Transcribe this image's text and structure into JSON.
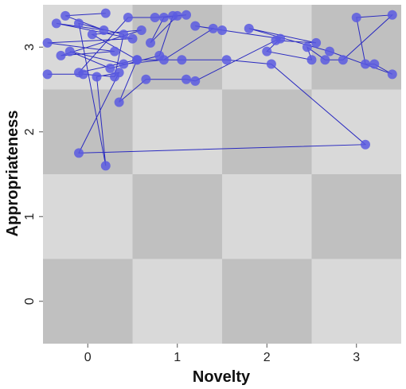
{
  "chart_data": {
    "type": "scatter",
    "title": "",
    "xlabel": "Novelty",
    "ylabel": "Appropriateness",
    "xlim": [
      -0.5,
      3.5
    ],
    "ylim": [
      -0.5,
      3.5
    ],
    "x_ticks": [
      "0",
      "1",
      "2",
      "3"
    ],
    "y_ticks": [
      "0",
      "1",
      "2",
      "3"
    ],
    "background": "checkerboard",
    "colors": {
      "cell_light": "#d9d9d9",
      "cell_dark": "#c0c0c0",
      "point": "#5a5ae0",
      "line": "#2a2ac0"
    },
    "connected": true,
    "points": [
      {
        "x": 0.2,
        "y": 3.4
      },
      {
        "x": -0.25,
        "y": 3.37
      },
      {
        "x": 0.18,
        "y": 3.2
      },
      {
        "x": -0.35,
        "y": 3.28
      },
      {
        "x": 0.5,
        "y": 3.1
      },
      {
        "x": -0.45,
        "y": 3.05
      },
      {
        "x": 0.3,
        "y": 2.95
      },
      {
        "x": -0.3,
        "y": 2.9
      },
      {
        "x": 0.6,
        "y": 3.2
      },
      {
        "x": 0.05,
        "y": 3.15
      },
      {
        "x": 0.55,
        "y": 2.85
      },
      {
        "x": -0.1,
        "y": 2.7
      },
      {
        "x": 0.45,
        "y": 3.35
      },
      {
        "x": 0.75,
        "y": 3.35
      },
      {
        "x": 1.1,
        "y": 3.38
      },
      {
        "x": 0.85,
        "y": 3.35
      },
      {
        "x": 0.7,
        "y": 3.05
      },
      {
        "x": 1.0,
        "y": 3.37
      },
      {
        "x": 0.95,
        "y": 3.37
      },
      {
        "x": 0.8,
        "y": 2.9
      },
      {
        "x": 0.25,
        "y": 2.75
      },
      {
        "x": -0.2,
        "y": 2.95
      },
      {
        "x": 0.4,
        "y": 2.8
      },
      {
        "x": 0.85,
        "y": 2.85
      },
      {
        "x": 1.4,
        "y": 3.22
      },
      {
        "x": 1.2,
        "y": 3.25
      },
      {
        "x": 1.5,
        "y": 3.2
      },
      {
        "x": 2.15,
        "y": 3.1
      },
      {
        "x": 2.0,
        "y": 2.95
      },
      {
        "x": 2.5,
        "y": 2.85
      },
      {
        "x": 2.45,
        "y": 3.0
      },
      {
        "x": 2.65,
        "y": 2.85
      },
      {
        "x": 2.85,
        "y": 2.85
      },
      {
        "x": 3.4,
        "y": 3.38
      },
      {
        "x": 3.0,
        "y": 3.35
      },
      {
        "x": 3.1,
        "y": 2.8
      },
      {
        "x": 3.2,
        "y": 2.8
      },
      {
        "x": 3.4,
        "y": 2.68
      },
      {
        "x": 2.7,
        "y": 2.95
      },
      {
        "x": 1.8,
        "y": 3.22
      },
      {
        "x": 2.55,
        "y": 3.05
      },
      {
        "x": 2.1,
        "y": 3.08
      },
      {
        "x": 1.2,
        "y": 2.6
      },
      {
        "x": 1.1,
        "y": 2.62
      },
      {
        "x": 0.65,
        "y": 2.62
      },
      {
        "x": 0.35,
        "y": 2.35
      },
      {
        "x": 0.55,
        "y": 2.85
      },
      {
        "x": 1.05,
        "y": 2.85
      },
      {
        "x": 1.55,
        "y": 2.85
      },
      {
        "x": 2.05,
        "y": 2.8
      },
      {
        "x": 3.1,
        "y": 1.85
      },
      {
        "x": -0.1,
        "y": 1.75
      },
      {
        "x": 0.35,
        "y": 2.7
      },
      {
        "x": 0.1,
        "y": 2.65
      },
      {
        "x": 0.2,
        "y": 1.6
      },
      {
        "x": -0.1,
        "y": 3.28
      },
      {
        "x": 0.4,
        "y": 3.15
      },
      {
        "x": 0.3,
        "y": 2.65
      },
      {
        "x": -0.05,
        "y": 2.68
      },
      {
        "x": -0.45,
        "y": 2.68
      }
    ]
  }
}
